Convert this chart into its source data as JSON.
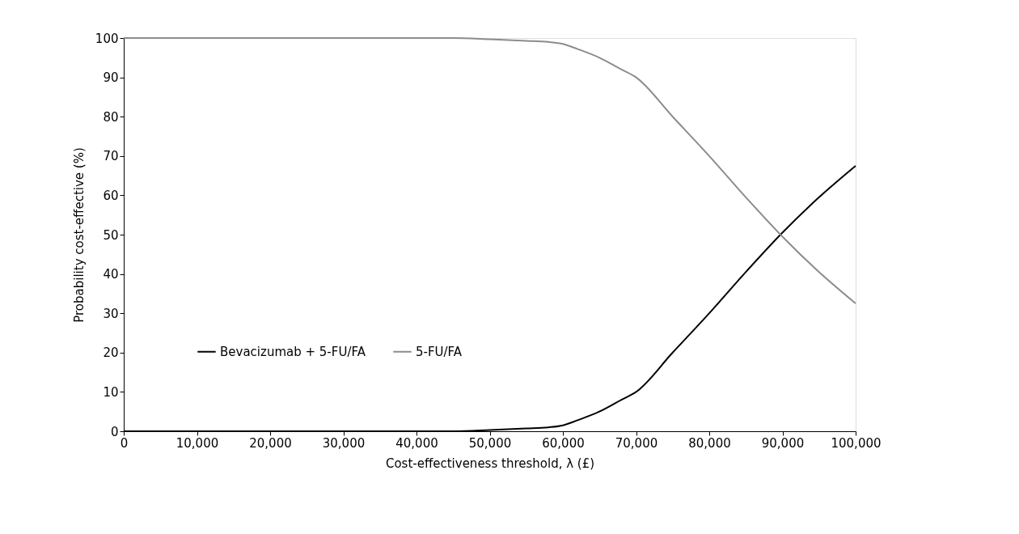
{
  "chart_data": {
    "type": "line",
    "xlabel": "Cost-effectiveness threshold, λ (£)",
    "ylabel": "Probability cost-effective (%)",
    "x": [
      0,
      10000,
      20000,
      30000,
      40000,
      45000,
      50000,
      55000,
      58000,
      60000,
      62000,
      65000,
      68000,
      70000,
      75000,
      80000,
      85000,
      90000,
      95000,
      100000
    ],
    "series": [
      {
        "name": "Bevacizumab + 5-FU/FA",
        "color": "#000000",
        "values": [
          0,
          0,
          0,
          0,
          0,
          0,
          0.3,
          0.7,
          1,
          1.5,
          2.8,
          5,
          8,
          10,
          20,
          30,
          40.5,
          50.5,
          59.5,
          67.5
        ]
      },
      {
        "name": "5-FU/FA",
        "color": "#8c8c8c",
        "values": [
          100,
          100,
          100,
          100,
          100,
          100,
          99.7,
          99.3,
          99,
          98.5,
          97.2,
          95,
          92,
          90,
          80,
          70,
          59.5,
          49.5,
          40.5,
          32.5
        ]
      }
    ],
    "xlim": [
      0,
      100000
    ],
    "xticks": [
      0,
      {
        "value": 10000,
        "label": "10,000"
      },
      {
        "value": 20000,
        "label": "20,000"
      },
      {
        "value": 30000,
        "label": "30,000"
      },
      {
        "value": 40000,
        "label": "40,000"
      },
      {
        "value": 50000,
        "label": "50,000"
      },
      {
        "value": 60000,
        "label": "60,000"
      },
      {
        "value": 70000,
        "label": "70,000"
      },
      {
        "value": 80000,
        "label": "80,000"
      },
      {
        "value": 90000,
        "label": "90,000"
      },
      {
        "value": 100000,
        "label": "100,000"
      }
    ],
    "ylim": [
      0,
      100
    ],
    "yticks": [
      0,
      10,
      20,
      30,
      40,
      50,
      60,
      70,
      80,
      90,
      100
    ],
    "legend": "bottom left",
    "grid": false,
    "marker": "none",
    "line_style": "solid"
  }
}
